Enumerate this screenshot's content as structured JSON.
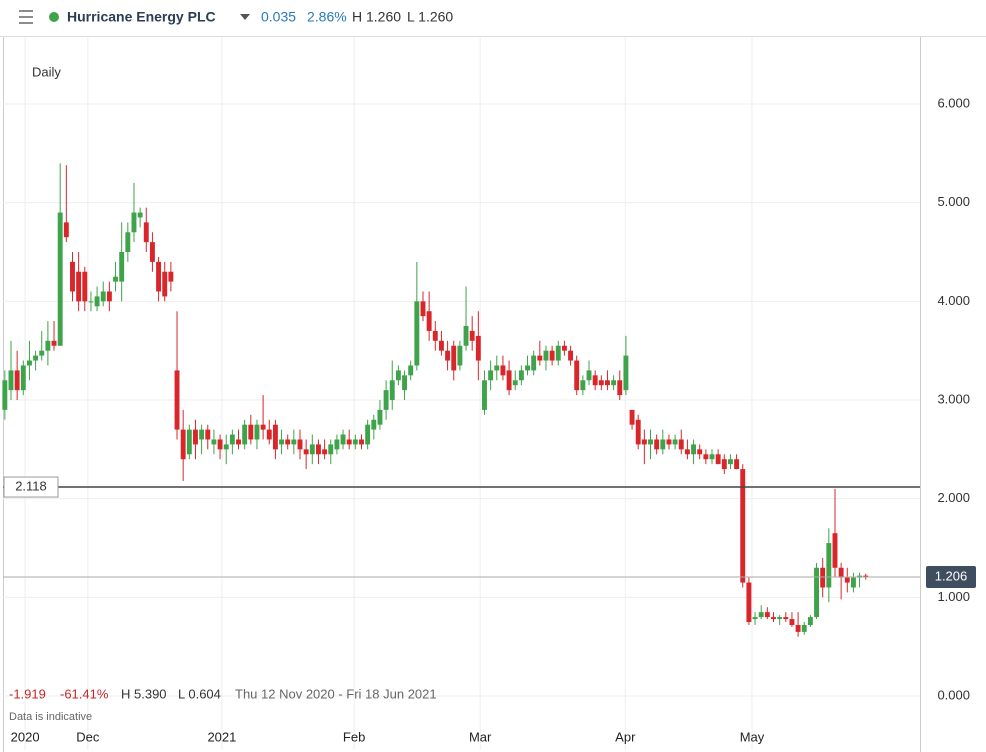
{
  "header": {
    "title": "Hurricane Energy PLC",
    "change": "0.035",
    "change_pct": "2.86%",
    "high": "H 1.260",
    "low": "L 1.260"
  },
  "chart_data": {
    "type": "candlestick",
    "interval": "Daily",
    "up_color": "#3ea34a",
    "down_color": "#d8262b",
    "ylim": [
      -0.547,
      6.679
    ],
    "yticks": [
      {
        "value": 0,
        "label": "0.000"
      },
      {
        "value": 1,
        "label": "1.000"
      },
      {
        "value": 2,
        "label": "2.000"
      },
      {
        "value": 3,
        "label": "3.000"
      },
      {
        "value": 4,
        "label": "4.000"
      },
      {
        "value": 5,
        "label": "5.000"
      },
      {
        "value": 6,
        "label": "6.000"
      }
    ],
    "xlim": [
      -0.3,
      148.5
    ],
    "xticks": [
      {
        "value": 3.3,
        "label": "2020"
      },
      {
        "value": 13.5,
        "label": "Dec"
      },
      {
        "value": 35.3,
        "label": "2021"
      },
      {
        "value": 56.8,
        "label": "Feb"
      },
      {
        "value": 77.3,
        "label": "Mar"
      },
      {
        "value": 100.9,
        "label": "Apr"
      },
      {
        "value": 121.5,
        "label": "May"
      }
    ],
    "reference_line": 2.118,
    "last_price": 1.206,
    "stats": {
      "change": "-1.919",
      "change_pct": "-61.41%",
      "high": "H 5.390",
      "low": "L 0.604",
      "range": "Thu 12 Nov 2020 - Fri 18 Jun 2021"
    },
    "note": "Data is indicative",
    "candles": [
      [
        2.9,
        3.3,
        2.8,
        3.2
      ],
      [
        3.1,
        3.6,
        3.0,
        3.3
      ],
      [
        3.3,
        3.5,
        3.0,
        3.1
      ],
      [
        3.1,
        3.4,
        3.05,
        3.35
      ],
      [
        3.35,
        3.6,
        3.2,
        3.4
      ],
      [
        3.4,
        3.5,
        3.3,
        3.45
      ],
      [
        3.45,
        3.7,
        3.4,
        3.5
      ],
      [
        3.5,
        3.8,
        3.35,
        3.6
      ],
      [
        3.6,
        3.8,
        3.5,
        3.55
      ],
      [
        3.55,
        5.4,
        3.55,
        4.9
      ],
      [
        4.8,
        5.38,
        4.6,
        4.65
      ],
      [
        4.4,
        4.5,
        4.0,
        4.1
      ],
      [
        4.3,
        4.5,
        3.9,
        4.0
      ],
      [
        4.3,
        4.35,
        3.9,
        4.0
      ],
      [
        4.0,
        4.1,
        3.9,
        4.0
      ],
      [
        3.95,
        4.15,
        3.9,
        4.05
      ],
      [
        4.0,
        4.2,
        3.95,
        4.1
      ],
      [
        4.1,
        4.2,
        3.9,
        4.0
      ],
      [
        4.2,
        4.4,
        4.1,
        4.25
      ],
      [
        4.2,
        4.8,
        4.0,
        4.5
      ],
      [
        4.5,
        4.8,
        4.4,
        4.7
      ],
      [
        4.7,
        5.2,
        4.6,
        4.9
      ],
      [
        4.85,
        4.95,
        4.75,
        4.9
      ],
      [
        4.8,
        4.95,
        4.5,
        4.6
      ],
      [
        4.6,
        4.7,
        4.3,
        4.4
      ],
      [
        4.4,
        4.45,
        4.0,
        4.1
      ],
      [
        4.3,
        4.4,
        4.0,
        4.05
      ],
      [
        4.3,
        4.4,
        4.1,
        4.2
      ],
      [
        3.3,
        3.9,
        2.6,
        2.7
      ],
      [
        2.7,
        2.9,
        2.18,
        2.4
      ],
      [
        2.45,
        2.75,
        2.4,
        2.7
      ],
      [
        2.7,
        2.8,
        2.4,
        2.55
      ],
      [
        2.6,
        2.75,
        2.45,
        2.7
      ],
      [
        2.7,
        2.75,
        2.5,
        2.6
      ],
      [
        2.55,
        2.7,
        2.45,
        2.6
      ],
      [
        2.6,
        2.65,
        2.4,
        2.5
      ],
      [
        2.5,
        2.65,
        2.35,
        2.55
      ],
      [
        2.55,
        2.7,
        2.45,
        2.65
      ],
      [
        2.6,
        2.7,
        2.5,
        2.55
      ],
      [
        2.55,
        2.8,
        2.5,
        2.75
      ],
      [
        2.75,
        2.85,
        2.55,
        2.6
      ],
      [
        2.6,
        2.8,
        2.5,
        2.75
      ],
      [
        2.75,
        3.05,
        2.6,
        2.7
      ],
      [
        2.7,
        2.8,
        2.55,
        2.6
      ],
      [
        2.75,
        2.8,
        2.4,
        2.5
      ],
      [
        2.55,
        2.7,
        2.45,
        2.6
      ],
      [
        2.6,
        2.65,
        2.5,
        2.55
      ],
      [
        2.55,
        2.7,
        2.45,
        2.6
      ],
      [
        2.6,
        2.7,
        2.4,
        2.5
      ],
      [
        2.5,
        2.6,
        2.3,
        2.45
      ],
      [
        2.45,
        2.65,
        2.35,
        2.55
      ],
      [
        2.55,
        2.6,
        2.35,
        2.45
      ],
      [
        2.5,
        2.6,
        2.4,
        2.45
      ],
      [
        2.45,
        2.6,
        2.35,
        2.55
      ],
      [
        2.5,
        2.65,
        2.45,
        2.6
      ],
      [
        2.55,
        2.7,
        2.5,
        2.65
      ],
      [
        2.6,
        2.7,
        2.5,
        2.55
      ],
      [
        2.55,
        2.65,
        2.5,
        2.6
      ],
      [
        2.6,
        2.65,
        2.5,
        2.55
      ],
      [
        2.55,
        2.8,
        2.5,
        2.75
      ],
      [
        2.7,
        2.85,
        2.6,
        2.8
      ],
      [
        2.75,
        3.0,
        2.7,
        2.9
      ],
      [
        2.9,
        3.2,
        2.8,
        3.1
      ],
      [
        3.0,
        3.4,
        2.9,
        3.2
      ],
      [
        3.2,
        3.35,
        3.15,
        3.3
      ],
      [
        3.1,
        3.3,
        3.0,
        3.25
      ],
      [
        3.25,
        3.4,
        3.2,
        3.35
      ],
      [
        3.35,
        4.4,
        3.3,
        4.0
      ],
      [
        4.0,
        4.1,
        3.8,
        3.85
      ],
      [
        3.9,
        4.1,
        3.6,
        3.7
      ],
      [
        3.7,
        3.8,
        3.5,
        3.6
      ],
      [
        3.6,
        3.7,
        3.45,
        3.5
      ],
      [
        3.5,
        3.6,
        3.3,
        3.4
      ],
      [
        3.55,
        3.6,
        3.2,
        3.3
      ],
      [
        3.35,
        3.6,
        3.3,
        3.55
      ],
      [
        3.55,
        4.15,
        3.5,
        3.75
      ],
      [
        3.7,
        3.85,
        3.5,
        3.6
      ],
      [
        3.65,
        3.9,
        3.2,
        3.4
      ],
      [
        2.9,
        3.3,
        2.85,
        3.2
      ],
      [
        3.2,
        3.4,
        3.1,
        3.3
      ],
      [
        3.3,
        3.45,
        3.2,
        3.35
      ],
      [
        3.35,
        3.45,
        3.2,
        3.25
      ],
      [
        3.3,
        3.4,
        3.05,
        3.1
      ],
      [
        3.15,
        3.3,
        3.1,
        3.2
      ],
      [
        3.2,
        3.35,
        3.15,
        3.3
      ],
      [
        3.3,
        3.45,
        3.25,
        3.35
      ],
      [
        3.3,
        3.5,
        3.25,
        3.45
      ],
      [
        3.45,
        3.6,
        3.35,
        3.4
      ],
      [
        3.4,
        3.55,
        3.3,
        3.5
      ],
      [
        3.5,
        3.55,
        3.35,
        3.4
      ],
      [
        3.4,
        3.6,
        3.35,
        3.55
      ],
      [
        3.55,
        3.6,
        3.45,
        3.5
      ],
      [
        3.5,
        3.55,
        3.35,
        3.4
      ],
      [
        3.4,
        3.45,
        3.05,
        3.1
      ],
      [
        3.1,
        3.25,
        3.05,
        3.2
      ],
      [
        3.2,
        3.4,
        3.15,
        3.3
      ],
      [
        3.25,
        3.3,
        3.1,
        3.15
      ],
      [
        3.2,
        3.25,
        3.1,
        3.15
      ],
      [
        3.2,
        3.3,
        3.1,
        3.15
      ],
      [
        3.15,
        3.25,
        3.1,
        3.2
      ],
      [
        3.2,
        3.3,
        3.0,
        3.05
      ],
      [
        3.1,
        3.65,
        3.05,
        3.45
      ],
      [
        2.9,
        2.9,
        2.7,
        2.75
      ],
      [
        2.8,
        2.85,
        2.5,
        2.55
      ],
      [
        2.6,
        2.7,
        2.35,
        2.55
      ],
      [
        2.55,
        2.7,
        2.4,
        2.6
      ],
      [
        2.6,
        2.65,
        2.45,
        2.5
      ],
      [
        2.5,
        2.7,
        2.45,
        2.6
      ],
      [
        2.6,
        2.65,
        2.5,
        2.55
      ],
      [
        2.55,
        2.65,
        2.5,
        2.6
      ],
      [
        2.6,
        2.7,
        2.45,
        2.5
      ],
      [
        2.5,
        2.6,
        2.4,
        2.45
      ],
      [
        2.45,
        2.6,
        2.35,
        2.55
      ],
      [
        2.5,
        2.55,
        2.4,
        2.45
      ],
      [
        2.45,
        2.5,
        2.35,
        2.4
      ],
      [
        2.4,
        2.5,
        2.35,
        2.45
      ],
      [
        2.45,
        2.5,
        2.35,
        2.35
      ],
      [
        2.4,
        2.45,
        2.25,
        2.3
      ],
      [
        2.35,
        2.45,
        2.3,
        2.4
      ],
      [
        2.4,
        2.45,
        2.3,
        2.3
      ],
      [
        2.3,
        2.35,
        1.1,
        1.15
      ],
      [
        1.15,
        1.2,
        0.72,
        0.75
      ],
      [
        0.78,
        0.85,
        0.72,
        0.8
      ],
      [
        0.8,
        0.92,
        0.78,
        0.85
      ],
      [
        0.85,
        0.9,
        0.78,
        0.8
      ],
      [
        0.8,
        0.85,
        0.75,
        0.78
      ],
      [
        0.78,
        0.82,
        0.72,
        0.8
      ],
      [
        0.8,
        0.85,
        0.75,
        0.78
      ],
      [
        0.78,
        0.85,
        0.7,
        0.72
      ],
      [
        0.72,
        0.85,
        0.6,
        0.65
      ],
      [
        0.65,
        0.75,
        0.62,
        0.72
      ],
      [
        0.72,
        0.82,
        0.7,
        0.8
      ],
      [
        0.8,
        1.35,
        0.78,
        1.3
      ],
      [
        1.3,
        1.4,
        1.0,
        1.1
      ],
      [
        1.1,
        1.7,
        0.95,
        1.55
      ],
      [
        1.65,
        2.1,
        1.2,
        1.3
      ],
      [
        1.3,
        1.35,
        0.98,
        1.2
      ],
      [
        1.2,
        1.3,
        1.05,
        1.15
      ],
      [
        1.1,
        1.25,
        1.05,
        1.2
      ],
      [
        1.2,
        1.25,
        1.1,
        1.22
      ],
      [
        1.22,
        1.24,
        1.18,
        1.206
      ]
    ]
  }
}
